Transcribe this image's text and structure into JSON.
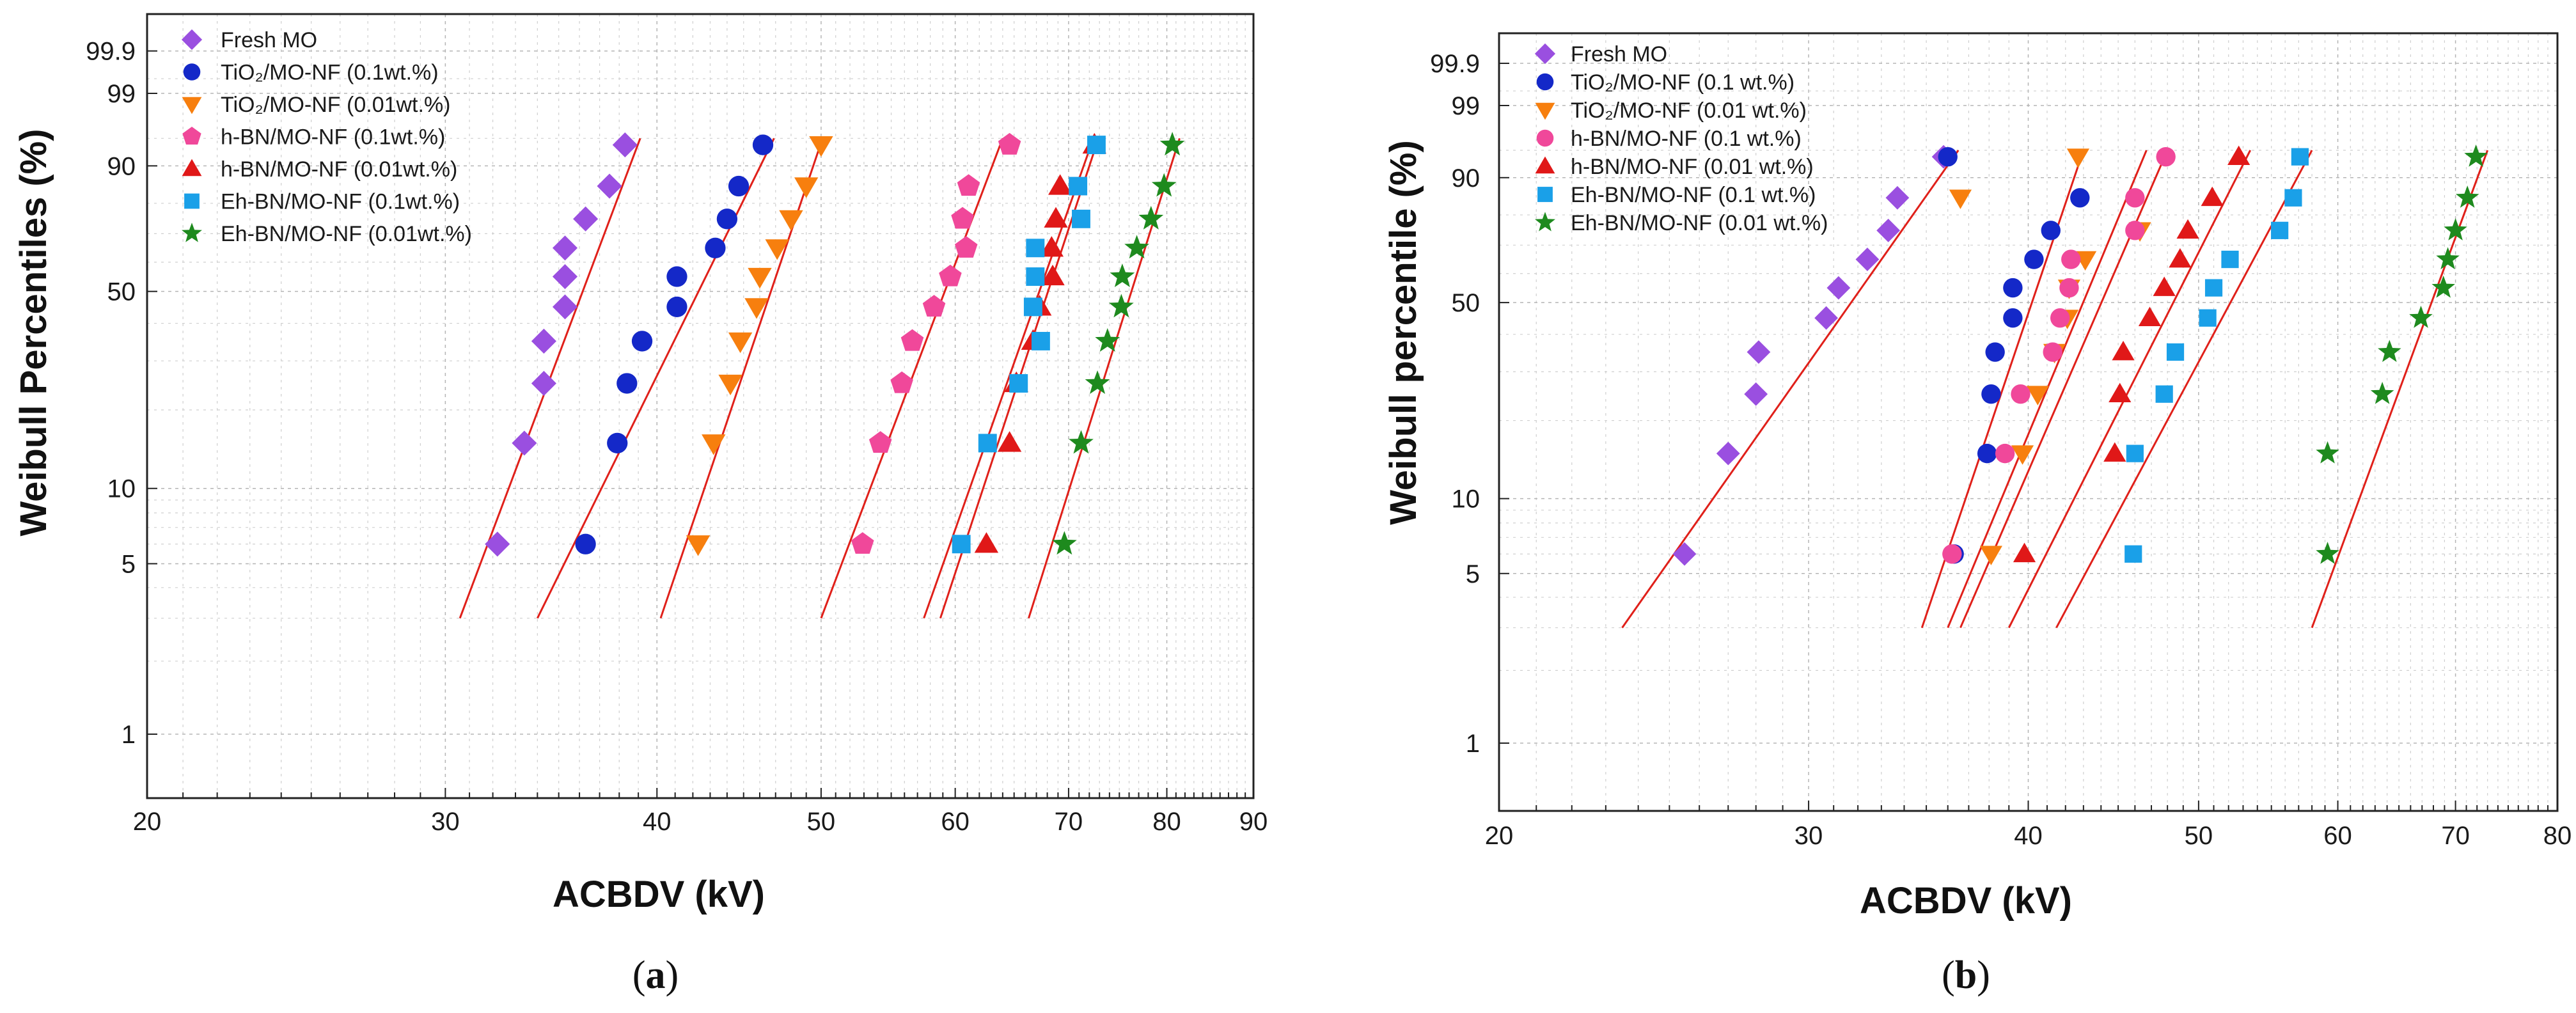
{
  "chart_data": [
    {
      "type": "scatter",
      "panel_label": "a",
      "xlabel": "ACBDV (kV)",
      "ylabel": "Weibull Percentiles (%)",
      "xscale": "log",
      "yscale": "weibull",
      "xlim": [
        20,
        90
      ],
      "ylim": [
        0.5,
        99.9
      ],
      "xticks": [
        20,
        30,
        40,
        50,
        60,
        70,
        80,
        90
      ],
      "yticks": [
        1,
        5,
        10,
        50,
        90,
        99,
        99.9
      ],
      "legend_position": "top-left",
      "series": [
        {
          "name": "Fresh MO",
          "marker": "diamond",
          "color": "#9a4fe0",
          "x": [
            32.2,
            33.4,
            34.3,
            34.3,
            35.3,
            35.3,
            35.3,
            36.3,
            37.5,
            38.3
          ],
          "y": [
            6,
            15,
            25,
            35,
            45,
            55,
            65,
            75,
            85,
            94
          ],
          "fit": {
            "x1": 30.6,
            "y1": 3,
            "x2": 39.1,
            "y2": 95
          }
        },
        {
          "name": "TiO₂/MO-NF (0.1wt.%)",
          "marker": "circle",
          "color": "#1428c8",
          "x": [
            36.3,
            37.9,
            38.4,
            39.2,
            41.1,
            41.1,
            43.3,
            44,
            44.7,
            46.2
          ],
          "y": [
            6,
            15,
            25,
            35,
            45,
            55,
            65,
            75,
            85,
            94
          ],
          "fit": {
            "x1": 34.0,
            "y1": 3,
            "x2": 46.9,
            "y2": 95
          }
        },
        {
          "name": "TiO₂/MO-NF (0.01wt.%)",
          "marker": "triangle-down",
          "color": "#f77f0e",
          "x": [
            42.3,
            43.2,
            44.2,
            44.8,
            45.8,
            46,
            47.1,
            48,
            49,
            50
          ],
          "y": [
            6,
            15,
            25,
            35,
            45,
            55,
            65,
            75,
            85,
            94
          ],
          "fit": {
            "x1": 40.2,
            "y1": 3,
            "x2": 50.1,
            "y2": 95
          }
        },
        {
          "name": "h-BN/MO-NF (0.1wt.%)",
          "marker": "pentagon",
          "color": "#f0489a",
          "x": [
            52.9,
            54.2,
            55.8,
            56.6,
            58.3,
            59.6,
            60.9,
            60.6,
            61.1,
            64.6
          ],
          "y": [
            6,
            15,
            25,
            35,
            45,
            55,
            65,
            75,
            85,
            94
          ],
          "fit": {
            "x1": 50.0,
            "y1": 3,
            "x2": 64.0,
            "y2": 95
          }
        },
        {
          "name": "h-BN/MO-NF (0.01wt.%)",
          "marker": "triangle-up",
          "color": "#e01818",
          "x": [
            62.6,
            64.6,
            65.2,
            66.7,
            67.3,
            68.5,
            68.4,
            68.8,
            69.2,
            72.5
          ],
          "y": [
            6,
            15,
            25,
            35,
            45,
            55,
            65,
            75,
            85,
            94
          ],
          "fit": {
            "x1": 58.8,
            "y1": 3,
            "x2": 72.9,
            "y2": 95
          }
        },
        {
          "name": "Eh-BN/MO-NF (0.1wt.%)",
          "marker": "square",
          "color": "#1aa0e8",
          "x": [
            60.5,
            62.7,
            65.4,
            67.4,
            66.7,
            66.9,
            66.9,
            71.2,
            70.9,
            72.7
          ],
          "y": [
            6,
            15,
            25,
            35,
            45,
            55,
            65,
            75,
            85,
            94
          ],
          "fit": {
            "x1": 57.5,
            "y1": 3,
            "x2": 72.4,
            "y2": 95
          }
        },
        {
          "name": "Eh-BN/MO-NF (0.01wt.%)",
          "marker": "star",
          "color": "#1e8a1e",
          "x": [
            69.6,
            71.2,
            72.8,
            73.8,
            75.2,
            75.3,
            76.8,
            78.3,
            79.7,
            80.6
          ],
          "y": [
            6,
            15,
            25,
            35,
            45,
            55,
            65,
            75,
            85,
            94
          ],
          "fit": {
            "x1": 66.3,
            "y1": 3,
            "x2": 81.4,
            "y2": 95
          }
        }
      ]
    },
    {
      "type": "scatter",
      "panel_label": "b",
      "xlabel": "ACBDV (kV)",
      "ylabel": "Weibull percentile (%)",
      "xscale": "log",
      "yscale": "weibull",
      "xlim": [
        20,
        80
      ],
      "ylim": [
        0.5,
        99.9
      ],
      "xticks": [
        20,
        30,
        40,
        50,
        60,
        70,
        80
      ],
      "yticks": [
        1,
        5,
        10,
        50,
        90,
        99,
        99.9
      ],
      "legend_position": "top-left",
      "series": [
        {
          "name": "Fresh MO",
          "marker": "diamond",
          "color": "#9a4fe0",
          "x": [
            25.5,
            27,
            28,
            28.1,
            30.7,
            31.2,
            32.4,
            33.3,
            33.7,
            35.8
          ],
          "y": [
            6,
            15,
            25,
            35,
            45,
            55,
            65,
            75,
            85,
            94
          ],
          "fit": {
            "x1": 23.5,
            "y1": 3,
            "x2": 36.5,
            "y2": 95
          }
        },
        {
          "name": "TiO₂/MO-NF (0.1 wt.%)",
          "marker": "circle",
          "color": "#1428c8",
          "x": [
            36.3,
            37.9,
            38.1,
            38.3,
            39.2,
            39.2,
            40.3,
            41.2,
            42.8,
            36
          ],
          "y": [
            6,
            15,
            25,
            35,
            45,
            55,
            65,
            75,
            85,
            94
          ],
          "fit": {
            "x1": 34.8,
            "y1": 3,
            "x2": 43.0,
            "y2": 95
          }
        },
        {
          "name": "TiO₂/MO-NF (0.01 wt.%)",
          "marker": "triangle-down",
          "color": "#f77f0e",
          "x": [
            38.1,
            39.7,
            40.5,
            41.4,
            42.1,
            42.2,
            43.1,
            46.3,
            36.6,
            42.7
          ],
          "y": [
            6,
            15,
            25,
            35,
            45,
            55,
            65,
            75,
            85,
            94
          ],
          "fit": {
            "x1": 36.0,
            "y1": 3,
            "x2": 46.7,
            "y2": 95
          }
        },
        {
          "name": "h-BN/MO-NF (0.1 wt.%)",
          "marker": "circle",
          "color": "#f0489a",
          "x": [
            36.2,
            38.8,
            39.6,
            41.3,
            41.7,
            42.2,
            42.3,
            46,
            46,
            47.9
          ],
          "y": [
            6,
            15,
            25,
            35,
            45,
            55,
            65,
            75,
            85,
            94
          ],
          "fit": {
            "x1": 36.6,
            "y1": 3,
            "x2": 48.0,
            "y2": 95
          }
        },
        {
          "name": "h-BN/MO-NF (0.01 wt.%)",
          "marker": "triangle-up",
          "color": "#e01818",
          "x": [
            39.8,
            44.8,
            45.1,
            45.3,
            46.9,
            47.8,
            48.8,
            49.3,
            50.9,
            52.7
          ],
          "y": [
            6,
            15,
            25,
            35,
            45,
            55,
            65,
            75,
            85,
            94
          ],
          "fit": {
            "x1": 39.0,
            "y1": 3,
            "x2": 53.5,
            "y2": 95
          }
        },
        {
          "name": "Eh-BN/MO-NF (0.1 wt.%)",
          "marker": "square",
          "color": "#1aa0e8",
          "x": [
            45.9,
            46,
            47.8,
            48.5,
            50.6,
            51,
            52.1,
            55.6,
            56.6,
            57.1
          ],
          "y": [
            6,
            15,
            25,
            35,
            45,
            55,
            65,
            75,
            85,
            94
          ],
          "fit": {
            "x1": 41.5,
            "y1": 3,
            "x2": 58.0,
            "y2": 95
          }
        },
        {
          "name": "Eh-BN/MO-NF (0.01 wt.%)",
          "marker": "star",
          "color": "#1e8a1e",
          "x": [
            59.2,
            59.2,
            63.6,
            64.2,
            66.9,
            68.9,
            69.3,
            70,
            71.1,
            71.9
          ],
          "y": [
            6,
            15,
            25,
            35,
            45,
            55,
            65,
            75,
            85,
            94
          ],
          "fit": {
            "x1": 58.0,
            "y1": 3,
            "x2": 73.0,
            "y2": 95
          }
        }
      ]
    }
  ]
}
